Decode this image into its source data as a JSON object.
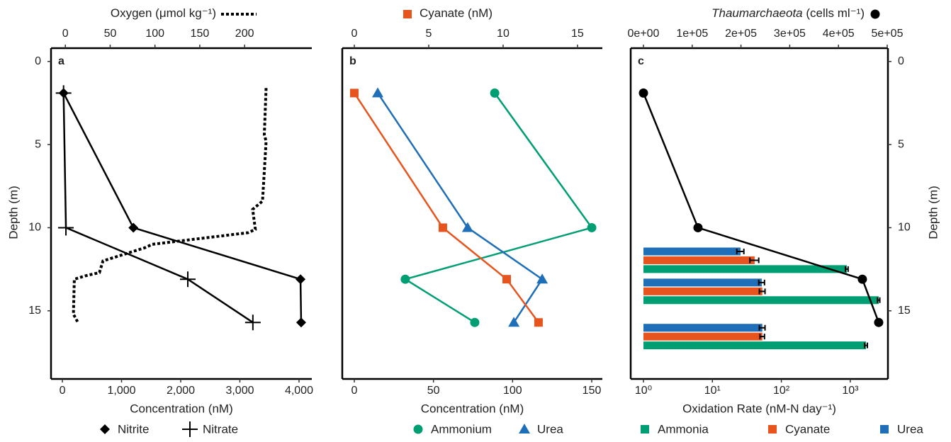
{
  "chart_data": [
    {
      "type": "line",
      "panel_label": "a",
      "x_label": "Concentration (nM)",
      "x2_label": "Oxygen (μmol kg⁻¹)",
      "y_label": "Depth (m)",
      "yaxis_side": "left",
      "y_reversed": true,
      "ylim": [
        -0.8,
        19.1
      ],
      "yticks": [
        0,
        5,
        10,
        15
      ],
      "xlim": [
        -192,
        4216
      ],
      "xticks": [
        0,
        {
          "value": 1000,
          "label": "1,000"
        },
        {
          "value": 2000,
          "label": "2,000"
        },
        {
          "value": 3000,
          "label": "3,000"
        },
        {
          "value": 4000,
          "label": "4,000"
        }
      ],
      "x2lim": [
        -16,
        275
      ],
      "x2ticks": [
        0,
        50,
        100,
        150,
        200
      ],
      "series": [
        {
          "name": "Nitrite",
          "color": "#000000",
          "marker": "diamond",
          "x": [
            20,
            1200,
            4025,
            4036
          ],
          "values": [
            1.9,
            10,
            13.1,
            15.7
          ]
        },
        {
          "name": "Nitrate",
          "color": "#000000",
          "marker": "plus",
          "x": [
            20,
            60,
            2120,
            3220
          ],
          "values": [
            1.9,
            10,
            13.1,
            15.7
          ]
        },
        {
          "color": "#000000",
          "linestyle": "dotted",
          "axis": "x2",
          "x": [
            224,
            222,
            224,
            220,
            209,
            212,
            204,
            97,
            89,
            42,
            38,
            22,
            10,
            9,
            14
          ],
          "values": [
            1.6,
            4.4,
            4.8,
            8.4,
            8.9,
            10.1,
            10.3,
            11.0,
            11.2,
            12.0,
            12.7,
            12.9,
            13.1,
            15.2,
            15.7
          ]
        }
      ]
    },
    {
      "type": "line",
      "panel_label": "b",
      "x_label": "Concentration (nM)",
      "x2_label": "Cyanate (nM)",
      "y_reversed": true,
      "ylim": [
        -0.8,
        19.1
      ],
      "xlim": [
        -7.6,
        156.7
      ],
      "xticks": [
        0,
        50,
        100,
        150
      ],
      "x2lim": [
        -0.81,
        16.67
      ],
      "x2ticks": [
        0,
        5,
        10,
        15
      ],
      "series": [
        {
          "name": "Ammonium",
          "color": "#009e73",
          "marker": "circle",
          "x": [
            88.7,
            150,
            32.2,
            76.1
          ],
          "values": [
            1.9,
            10,
            13.1,
            15.7
          ]
        },
        {
          "name": "Urea",
          "color": "#1f6fb8",
          "marker": "triangle",
          "x": [
            14.8,
            71.6,
            118.7,
            100.8
          ],
          "values": [
            1.9,
            10,
            13.1,
            15.7
          ]
        },
        {
          "color": "#e8541e",
          "marker": "square",
          "axis": "x2",
          "x": [
            0,
            5.95,
            10.24,
            12.38
          ],
          "values": [
            1.9,
            10,
            13.1,
            15.7
          ]
        }
      ]
    },
    {
      "type": "bar",
      "panel_label": "c",
      "x_label": "Oxidation Rate (nM-N day⁻¹)",
      "x2_label_italic": "Thaumarchaeota",
      "x2_label": " (cells ml⁻¹)",
      "y_label": "Depth (m)",
      "yaxis_side": "right",
      "y_reversed": true,
      "ylim": [
        -0.8,
        19.1
      ],
      "yticks": [
        0,
        5,
        10,
        15
      ],
      "xscale": "log",
      "xlim": [
        0.653,
        3516
      ],
      "xticks": [
        {
          "value": 1,
          "label": "10⁰"
        },
        {
          "value": 10,
          "label": "10¹"
        },
        {
          "value": 100,
          "label": "10²"
        },
        {
          "value": 1000,
          "label": "10³"
        }
      ],
      "x2lim": [
        -26160,
        501450
      ],
      "x2ticks": [
        {
          "value": 0,
          "label": "0e+00"
        },
        {
          "value": 100000,
          "label": "1e+05"
        },
        {
          "value": 200000,
          "label": "2e+05"
        },
        {
          "value": 300000,
          "label": "3e+05"
        },
        {
          "value": 400000,
          "label": "4e+05"
        },
        {
          "value": 500000,
          "label": "5e+05"
        }
      ],
      "bar_depths": [
        11.96,
        13.83,
        16.55
      ],
      "series": [
        {
          "name": "Ammonia",
          "color": "#009e73",
          "values": [
            890,
            2580,
            1690
          ],
          "errors": [
            40,
            100,
            80
          ]
        },
        {
          "name": "Cyanate",
          "color": "#e8541e",
          "values": [
            41,
            53,
            53
          ],
          "errors": [
            6,
            5,
            4
          ]
        },
        {
          "name": "Urea",
          "color": "#1f6fb8",
          "values": [
            25.6,
            52,
            53
          ],
          "errors": [
            3,
            5,
            5
          ]
        }
      ],
      "line_series": [
        {
          "color": "#000000",
          "marker": "circle",
          "axis": "x2",
          "x": [
            0,
            111900,
            449000,
            482500
          ],
          "values": [
            1.9,
            10,
            13.1,
            15.7
          ]
        }
      ]
    }
  ]
}
